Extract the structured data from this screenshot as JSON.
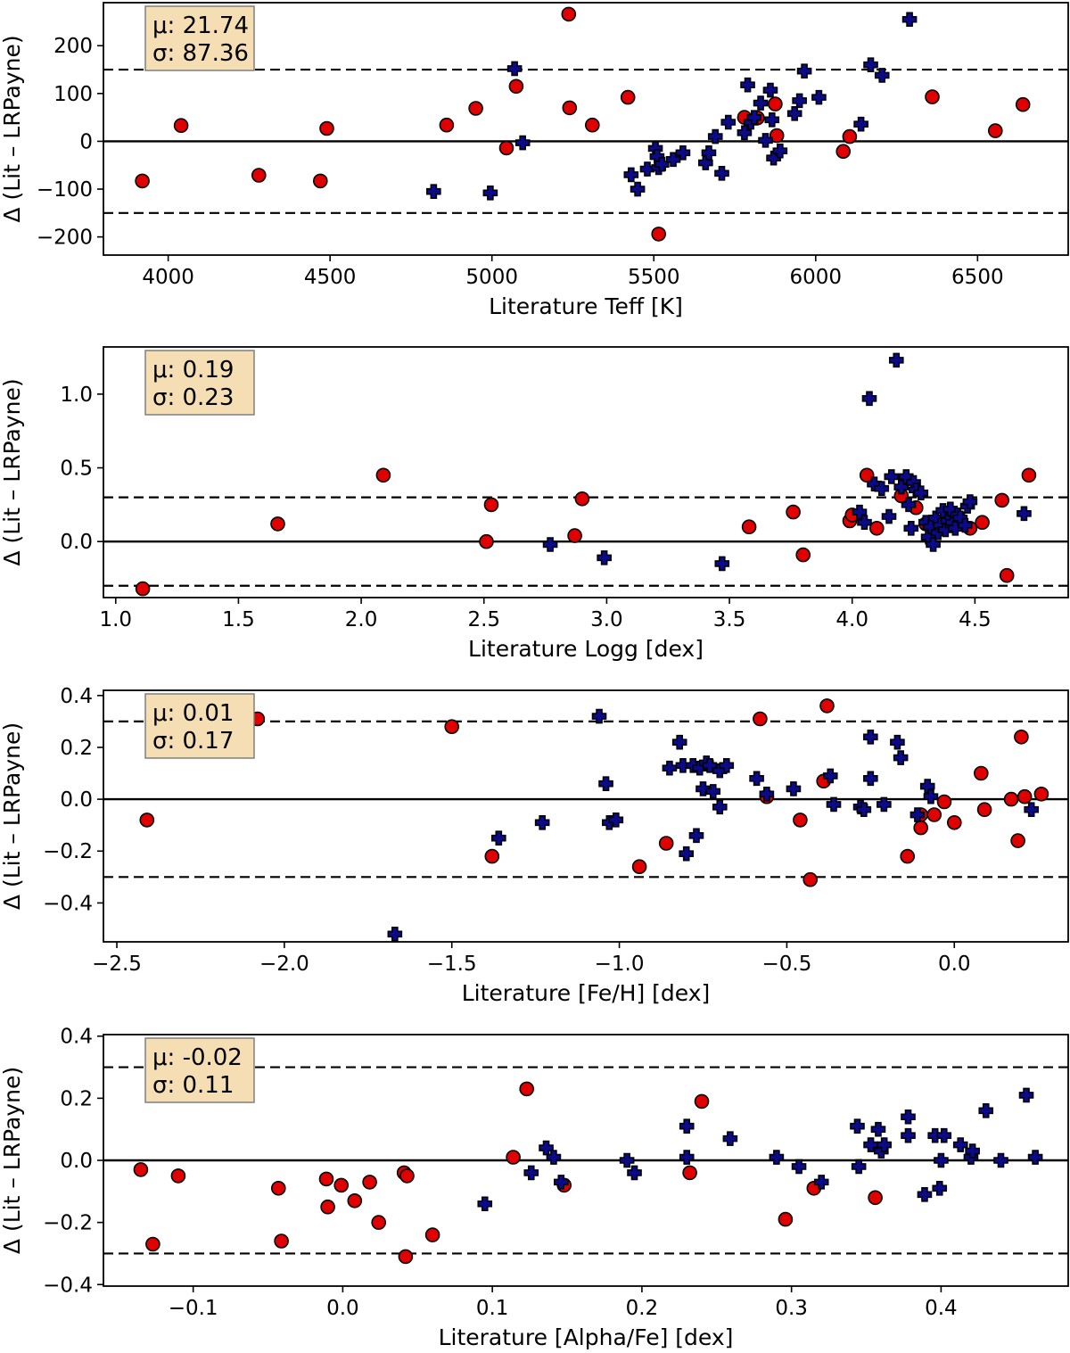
{
  "chart_data": [
    {
      "type": "scatter",
      "xlabel": "Literature Teff [K]",
      "ylabel": "Δ (Lit – LRPayne)",
      "xlim": [
        3800,
        6780
      ],
      "ylim": [
        -238,
        290
      ],
      "xticks": [
        4000,
        4500,
        5000,
        5500,
        6000,
        6500
      ],
      "yticks": [
        -200,
        -100,
        0,
        100,
        200
      ],
      "xtick_labels": [
        "4000",
        "4500",
        "5000",
        "5500",
        "6000",
        "6500"
      ],
      "ytick_labels": [
        "−200",
        "−100",
        "0",
        "100",
        "200"
      ],
      "threshold": 150,
      "stats": {
        "mu_label": "μ: 21.74",
        "sigma_label": "σ: 87.36"
      },
      "series": [
        {
          "name": "circles",
          "marker": "circle",
          "color": "#e00000",
          "x": [
            3920,
            4040,
            4280,
            4470,
            4490,
            4860,
            4950,
            5045,
            5075,
            5237,
            5240,
            5310,
            5420,
            5515,
            5780,
            5820,
            5875,
            5880,
            6085,
            6105,
            6360,
            6555,
            6640
          ],
          "y": [
            -83,
            33,
            -71,
            -83,
            27,
            34,
            69,
            -14,
            115,
            266,
            70,
            34,
            92,
            -194,
            50,
            49,
            78,
            12,
            -21,
            10,
            93,
            22,
            77
          ]
        },
        {
          "name": "crosses",
          "marker": "plus",
          "color": "#0a0a8a",
          "x": [
            4820,
            4995,
            5070,
            5095,
            5430,
            5450,
            5480,
            5505,
            5510,
            5515,
            5525,
            5560,
            5590,
            5660,
            5670,
            5690,
            5710,
            5730,
            5780,
            5790,
            5800,
            5810,
            5830,
            5845,
            5860,
            5865,
            5870,
            5890,
            5935,
            5950,
            5965,
            6010,
            6140,
            6170,
            6205,
            6290
          ],
          "y": [
            -105,
            -108,
            152,
            -3,
            -70,
            -100,
            -58,
            -15,
            -32,
            -55,
            -48,
            -38,
            -24,
            -45,
            -24,
            10,
            -67,
            40,
            18,
            118,
            40,
            50,
            80,
            2,
            107,
            45,
            -35,
            -20,
            58,
            85,
            147,
            92,
            36,
            160,
            138,
            255
          ]
        }
      ]
    },
    {
      "type": "scatter",
      "xlabel": "Literature Logg [dex]",
      "ylabel": "Δ (Lit – LRPayne)",
      "xlim": [
        0.95,
        4.88
      ],
      "ylim": [
        -0.38,
        1.32
      ],
      "xticks": [
        1.0,
        1.5,
        2.0,
        2.5,
        3.0,
        3.5,
        4.0,
        4.5
      ],
      "yticks": [
        0.0,
        0.5,
        1.0
      ],
      "xtick_labels": [
        "1.0",
        "1.5",
        "2.0",
        "2.5",
        "3.0",
        "3.5",
        "4.0",
        "4.5"
      ],
      "ytick_labels": [
        "0.0",
        "0.5",
        "1.0"
      ],
      "threshold": 0.3,
      "stats": {
        "mu_label": "μ: 0.19",
        "sigma_label": "σ: 0.23"
      },
      "series": [
        {
          "name": "circles",
          "marker": "circle",
          "color": "#e00000",
          "x": [
            1.11,
            1.66,
            2.09,
            2.51,
            2.53,
            2.87,
            2.9,
            3.58,
            3.76,
            3.8,
            3.99,
            4.0,
            4.06,
            4.1,
            4.2,
            4.26,
            4.3,
            4.4,
            4.48,
            4.53,
            4.61,
            4.63,
            4.72
          ],
          "y": [
            -0.32,
            0.12,
            0.45,
            0.0,
            0.25,
            0.04,
            0.29,
            0.1,
            0.2,
            -0.09,
            0.14,
            0.18,
            0.45,
            0.09,
            0.31,
            0.23,
            0.12,
            0.15,
            0.09,
            0.13,
            0.28,
            -0.23,
            0.45
          ]
        },
        {
          "name": "crosses",
          "marker": "plus",
          "color": "#0a0a8a",
          "x": [
            2.77,
            2.99,
            3.47,
            4.03,
            4.05,
            4.07,
            4.09,
            4.12,
            4.15,
            4.16,
            4.18,
            4.2,
            4.22,
            4.23,
            4.24,
            4.25,
            4.26,
            4.28,
            4.3,
            4.31,
            4.32,
            4.33,
            4.34,
            4.35,
            4.36,
            4.37,
            4.38,
            4.39,
            4.4,
            4.41,
            4.42,
            4.43,
            4.44,
            4.46,
            4.47,
            4.48,
            4.7
          ],
          "y": [
            -0.02,
            -0.11,
            -0.15,
            0.2,
            0.13,
            0.97,
            0.39,
            0.36,
            0.17,
            0.44,
            1.23,
            0.37,
            0.44,
            0.25,
            0.09,
            0.4,
            0.35,
            0.33,
            0.13,
            0.03,
            0.1,
            -0.02,
            0.16,
            0.06,
            0.11,
            0.21,
            0.08,
            0.14,
            0.22,
            0.13,
            0.09,
            0.18,
            0.16,
            0.11,
            0.24,
            0.27,
            0.19
          ]
        }
      ]
    },
    {
      "type": "scatter",
      "xlabel": "Literature [Fe/H] [dex]",
      "ylabel": "Δ (Lit – LRPayne)",
      "xlim": [
        -2.54,
        0.34
      ],
      "ylim": [
        -0.55,
        0.42
      ],
      "xticks": [
        -2.5,
        -2.0,
        -1.5,
        -1.0,
        -0.5,
        0.0
      ],
      "yticks": [
        -0.4,
        -0.2,
        0.0,
        0.2,
        0.4
      ],
      "xtick_labels": [
        "−2.5",
        "−2.0",
        "−1.5",
        "−1.0",
        "−0.5",
        "0.0"
      ],
      "ytick_labels": [
        "−0.4",
        "−0.2",
        "0.0",
        "0.2",
        "0.4"
      ],
      "threshold": 0.3,
      "stats": {
        "mu_label": "μ: 0.01",
        "sigma_label": "σ: 0.17"
      },
      "series": [
        {
          "name": "circles",
          "marker": "circle",
          "color": "#e00000",
          "x": [
            -2.41,
            -2.08,
            -1.5,
            -1.38,
            -0.94,
            -0.86,
            -0.58,
            -0.56,
            -0.46,
            -0.39,
            -0.38,
            -0.43,
            -0.14,
            -0.1,
            -0.1,
            -0.06,
            -0.03,
            0.0,
            0.08,
            0.09,
            0.17,
            0.19,
            0.2,
            0.21,
            0.26
          ],
          "y": [
            -0.08,
            0.31,
            0.28,
            -0.22,
            -0.26,
            -0.17,
            0.31,
            0.01,
            -0.08,
            0.07,
            0.36,
            -0.31,
            -0.22,
            -0.06,
            -0.11,
            -0.06,
            -0.01,
            -0.09,
            0.1,
            -0.04,
            0.0,
            -0.16,
            0.24,
            0.01,
            0.02
          ]
        },
        {
          "name": "crosses",
          "marker": "plus",
          "color": "#0a0a8a",
          "x": [
            -1.67,
            -1.36,
            -1.23,
            -1.06,
            -1.04,
            -1.03,
            -1.01,
            -0.85,
            -0.82,
            -0.81,
            -0.8,
            -0.78,
            -0.77,
            -0.76,
            -0.75,
            -0.74,
            -0.73,
            -0.72,
            -0.7,
            -0.7,
            -0.68,
            -0.59,
            -0.56,
            -0.48,
            -0.37,
            -0.36,
            -0.28,
            -0.27,
            -0.25,
            -0.25,
            -0.21,
            -0.17,
            -0.16,
            -0.11,
            -0.08,
            -0.07,
            0.23
          ],
          "y": [
            -0.52,
            -0.15,
            -0.09,
            0.32,
            0.06,
            -0.09,
            -0.08,
            0.12,
            0.22,
            0.13,
            -0.21,
            0.13,
            -0.14,
            0.12,
            0.04,
            0.14,
            0.13,
            0.03,
            0.11,
            -0.03,
            0.13,
            0.08,
            0.02,
            0.04,
            0.09,
            -0.02,
            -0.03,
            -0.04,
            0.08,
            0.24,
            -0.02,
            0.22,
            0.16,
            -0.06,
            0.05,
            0.01,
            -0.04
          ]
        }
      ]
    },
    {
      "type": "scatter",
      "xlabel": "Literature [Alpha/Fe] [dex]",
      "ylabel": "Δ (Lit – LRPayne)",
      "xlim": [
        -0.16,
        0.485
      ],
      "ylim": [
        -0.405,
        0.405
      ],
      "xticks": [
        -0.1,
        0.0,
        0.1,
        0.2,
        0.3,
        0.4
      ],
      "yticks": [
        -0.4,
        -0.2,
        0.0,
        0.2,
        0.4
      ],
      "xtick_labels": [
        "−0.1",
        "0.0",
        "0.1",
        "0.2",
        "0.3",
        "0.4"
      ],
      "ytick_labels": [
        "−0.4",
        "−0.2",
        "0.0",
        "0.2",
        "0.4"
      ],
      "threshold": 0.3,
      "stats": {
        "mu_label": "μ: -0.02",
        "sigma_label": "σ: 0.11"
      },
      "series": [
        {
          "name": "circles",
          "marker": "circle",
          "color": "#e00000",
          "x": [
            -0.135,
            -0.127,
            -0.11,
            -0.043,
            -0.041,
            -0.011,
            -0.01,
            -0.001,
            0.008,
            0.018,
            0.024,
            0.041,
            0.042,
            0.043,
            0.06,
            0.114,
            0.123,
            0.148,
            0.232,
            0.24,
            0.296,
            0.315,
            0.356
          ],
          "y": [
            -0.03,
            -0.27,
            -0.05,
            -0.09,
            -0.26,
            -0.06,
            -0.15,
            -0.08,
            -0.13,
            -0.07,
            -0.2,
            -0.04,
            -0.31,
            -0.05,
            -0.24,
            0.01,
            0.23,
            -0.08,
            -0.04,
            0.19,
            -0.19,
            -0.09,
            -0.12
          ]
        },
        {
          "name": "crosses",
          "marker": "plus",
          "color": "#0a0a8a",
          "x": [
            0.095,
            0.126,
            0.136,
            0.141,
            0.146,
            0.19,
            0.195,
            0.23,
            0.23,
            0.259,
            0.29,
            0.305,
            0.32,
            0.344,
            0.345,
            0.353,
            0.358,
            0.36,
            0.362,
            0.378,
            0.378,
            0.389,
            0.396,
            0.399,
            0.4,
            0.402,
            0.413,
            0.42,
            0.421,
            0.43,
            0.44,
            0.457,
            0.463
          ],
          "y": [
            -0.14,
            -0.04,
            0.04,
            0.01,
            -0.07,
            0.0,
            -0.04,
            0.11,
            0.01,
            0.07,
            0.01,
            -0.02,
            -0.07,
            0.11,
            -0.02,
            0.05,
            0.1,
            0.03,
            0.05,
            0.14,
            0.08,
            -0.11,
            0.08,
            -0.09,
            0.0,
            0.08,
            0.05,
            0.01,
            0.03,
            0.16,
            0.0,
            0.21,
            0.01
          ]
        }
      ]
    }
  ]
}
